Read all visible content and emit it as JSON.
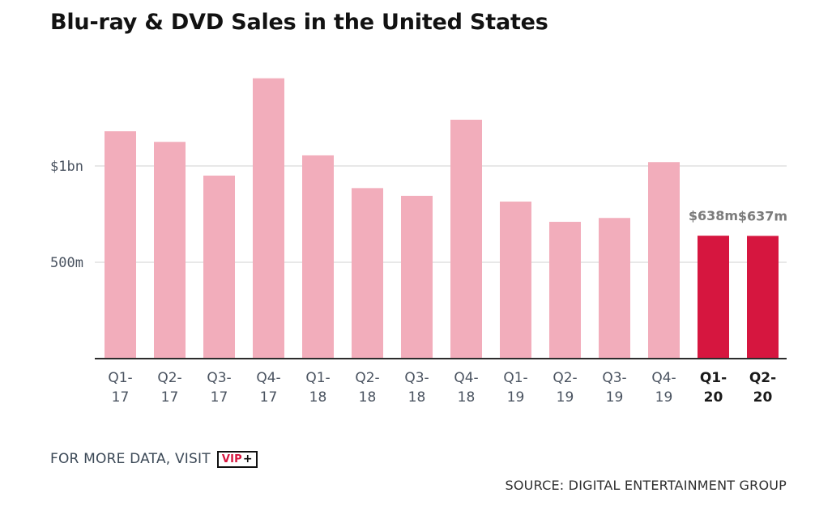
{
  "title": "Blu-ray & DVD Sales in the United States",
  "footer": {
    "cta_text": "FOR MORE DATA, VISIT",
    "vip_label": "VIP",
    "vip_plus": "+",
    "source": "SOURCE: DIGITAL ENTERTAINMENT GROUP"
  },
  "colors": {
    "past_bar": "#f2adbb",
    "highlight_bar": "#d6163f",
    "axis_label": "#4a5360",
    "gridline": "#d2d2d2",
    "baseline": "#2c2c2c",
    "value_label": "#7c7c7c"
  },
  "chart_data": {
    "type": "bar",
    "title": "Blu-ray & DVD Sales in the United States",
    "xlabel": "",
    "ylabel": "",
    "categories": [
      "Q1-17",
      "Q2-17",
      "Q3-17",
      "Q4-17",
      "Q1-18",
      "Q2-18",
      "Q3-18",
      "Q4-18",
      "Q1-19",
      "Q2-19",
      "Q3-19",
      "Q4-19",
      "Q1-20",
      "Q2-20"
    ],
    "category_lines": [
      [
        "Q1-",
        "17"
      ],
      [
        "Q2-",
        "17"
      ],
      [
        "Q3-",
        "17"
      ],
      [
        "Q4-",
        "17"
      ],
      [
        "Q1-",
        "18"
      ],
      [
        "Q2-",
        "18"
      ],
      [
        "Q3-",
        "18"
      ],
      [
        "Q4-",
        "18"
      ],
      [
        "Q1-",
        "19"
      ],
      [
        "Q2-",
        "19"
      ],
      [
        "Q3-",
        "19"
      ],
      [
        "Q4-",
        "19"
      ],
      [
        "Q1-",
        "20"
      ],
      [
        "Q2-",
        "20"
      ]
    ],
    "values": [
      1180,
      1125,
      950,
      1455,
      1055,
      885,
      845,
      1240,
      815,
      710,
      730,
      1020,
      638,
      637
    ],
    "units": "millions USD",
    "highlight_indices": [
      12,
      13
    ],
    "data_labels": [
      "",
      "",
      "",
      "",
      "",
      "",
      "",
      "",
      "",
      "",
      "",
      "",
      "$638m",
      "$637m"
    ],
    "ylim": [
      0,
      1500
    ],
    "yticks": [
      {
        "value": 500,
        "label": "500m"
      },
      {
        "value": 1000,
        "label": "$1bn"
      }
    ],
    "grid": true,
    "legend": "none"
  }
}
